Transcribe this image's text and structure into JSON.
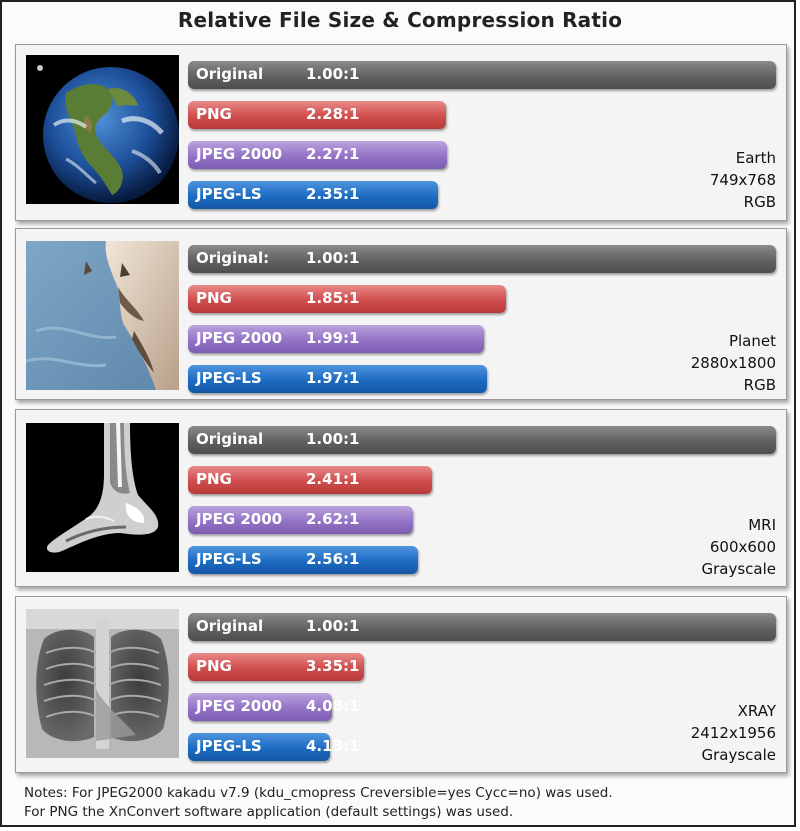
{
  "title": "Relative File Size & Compression Ratio",
  "notes": [
    "Notes: For JPEG2000 kakadu  v7.9 (kdu_cmopress Creversible=yes Cycc=no) was used.",
    "For PNG the XnConvert software application (default settings) was used."
  ],
  "colors": {
    "original": "#5a5a5a",
    "png": "#cf4d4d",
    "jpeg2000": "#9373c6",
    "jpegls": "#1c6bc1"
  },
  "chart_data": [
    {
      "type": "bar",
      "image": {
        "name": "Earth",
        "dimensions": "749x768",
        "color": "RGB",
        "thumbnail": "earth-image"
      },
      "bars": [
        {
          "label": "Original",
          "ratio_text": "1.00:1",
          "value": 1.0,
          "relative_size": 1.0
        },
        {
          "label": "PNG",
          "ratio_text": "2.28:1",
          "value": 2.28,
          "relative_size": 0.439
        },
        {
          "label": "JPEG 2000",
          "ratio_text": "2.27:1",
          "value": 2.27,
          "relative_size": 0.441
        },
        {
          "label": "JPEG-LS",
          "ratio_text": "2.35:1",
          "value": 2.35,
          "relative_size": 0.426
        }
      ]
    },
    {
      "type": "bar",
      "image": {
        "name": "Planet",
        "dimensions": "2880x1800",
        "color": "RGB",
        "thumbnail": "planet-surface-image"
      },
      "bars": [
        {
          "label": "Original:",
          "ratio_text": "1.00:1",
          "value": 1.0,
          "relative_size": 1.0
        },
        {
          "label": "PNG",
          "ratio_text": "1.85:1",
          "value": 1.85,
          "relative_size": 0.541
        },
        {
          "label": "JPEG 2000",
          "ratio_text": "1.99:1",
          "value": 1.99,
          "relative_size": 0.503
        },
        {
          "label": "JPEG-LS",
          "ratio_text": "1.97:1",
          "value": 1.97,
          "relative_size": 0.508
        }
      ]
    },
    {
      "type": "bar",
      "image": {
        "name": "MRI",
        "dimensions": "600x600",
        "color": "Grayscale",
        "thumbnail": "mri-foot-image"
      },
      "bars": [
        {
          "label": "Original",
          "ratio_text": "1.00:1",
          "value": 1.0,
          "relative_size": 1.0
        },
        {
          "label": "PNG",
          "ratio_text": "2.41:1",
          "value": 2.41,
          "relative_size": 0.415
        },
        {
          "label": "JPEG 2000",
          "ratio_text": "2.62:1",
          "value": 2.62,
          "relative_size": 0.382
        },
        {
          "label": "JPEG-LS",
          "ratio_text": "2.56:1",
          "value": 2.56,
          "relative_size": 0.391
        }
      ]
    },
    {
      "type": "bar",
      "image": {
        "name": "XRAY",
        "dimensions": "2412x1956",
        "color": "Grayscale",
        "thumbnail": "chest-xray-image"
      },
      "bars": [
        {
          "label": "Original",
          "ratio_text": "1.00:1",
          "value": 1.0,
          "relative_size": 1.0
        },
        {
          "label": "PNG",
          "ratio_text": "3.35:1",
          "value": 3.35,
          "relative_size": 0.299
        },
        {
          "label": "JPEG 2000",
          "ratio_text": "4.08:1",
          "value": 4.08,
          "relative_size": 0.245
        },
        {
          "label": "JPEG-LS",
          "ratio_text": "4.13:1",
          "value": 4.13,
          "relative_size": 0.242
        }
      ]
    }
  ]
}
